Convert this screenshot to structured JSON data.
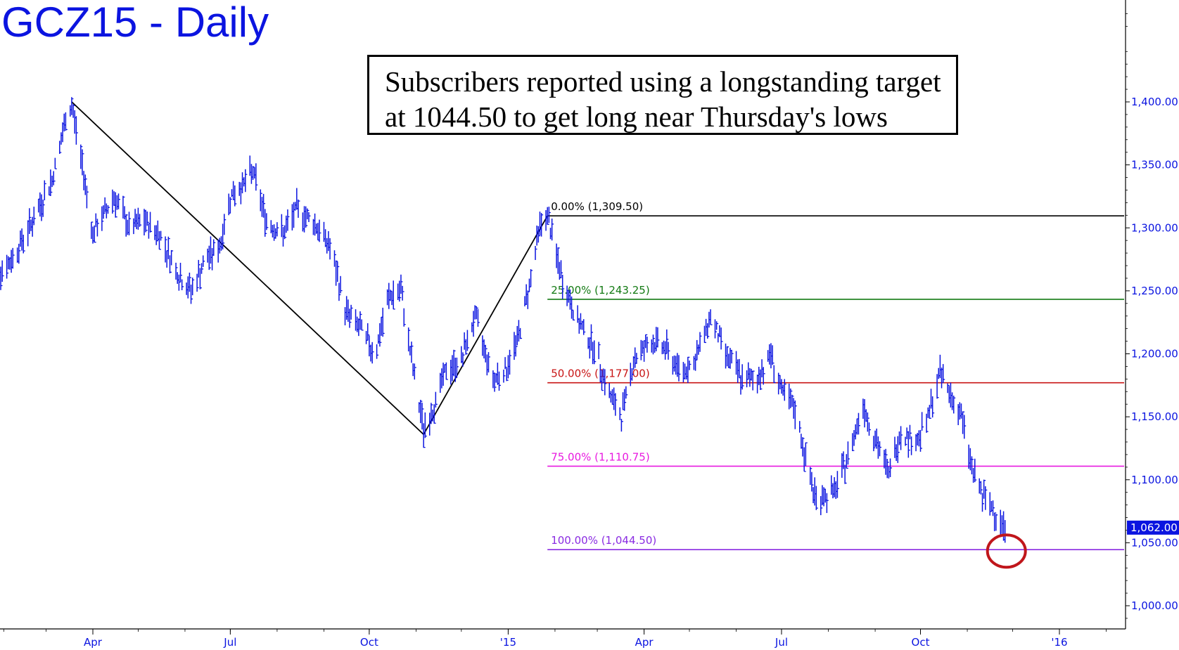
{
  "title": "GCZ15 - Daily",
  "annotation": {
    "line1": "Subscribers reported using a longstanding target",
    "line2": "at 1044.50 to get long near Thursday's lows"
  },
  "chart_data": {
    "type": "line",
    "title": "GCZ15 - Daily",
    "y_axis": {
      "ticks": [
        1000,
        1050,
        1100,
        1150,
        1200,
        1250,
        1300,
        1350,
        1400
      ],
      "tick_labels": [
        "1,000.00",
        "1,050.00",
        "1,100.00",
        "1,150.00",
        "1,200.00",
        "1,250.00",
        "1,300.00",
        "1,350.00",
        "1,400.00"
      ],
      "ylim": [
        982,
        1480
      ]
    },
    "x_axis": {
      "tick_labels": [
        "Apr",
        "Jul",
        "Oct",
        "'15",
        "Apr",
        "Jul",
        "Oct",
        "'16"
      ],
      "tick_dates": [
        "2014-04-01",
        "2014-07-01",
        "2014-10-01",
        "2015-01-01",
        "2015-04-01",
        "2015-07-01",
        "2015-10-01",
        "2016-01-01"
      ],
      "xlim": [
        "2014-01-20",
        "2016-03-01"
      ]
    },
    "grid": false,
    "price_series": {
      "name": "GCZ15",
      "color": "#0b14e0",
      "points": [
        [
          "2014-01-22",
          1258
        ],
        [
          "2014-02-05",
          1272
        ],
        [
          "2014-02-20",
          1305
        ],
        [
          "2014-03-05",
          1338
        ],
        [
          "2014-03-14",
          1385
        ],
        [
          "2014-03-18",
          1398
        ],
        [
          "2014-03-25",
          1350
        ],
        [
          "2014-04-01",
          1295
        ],
        [
          "2014-04-08",
          1310
        ],
        [
          "2014-04-15",
          1325
        ],
        [
          "2014-04-25",
          1300
        ],
        [
          "2014-05-05",
          1305
        ],
        [
          "2014-05-15",
          1295
        ],
        [
          "2014-05-28",
          1262
        ],
        [
          "2014-06-05",
          1250
        ],
        [
          "2014-06-15",
          1275
        ],
        [
          "2014-06-24",
          1285
        ],
        [
          "2014-07-01",
          1325
        ],
        [
          "2014-07-10",
          1335
        ],
        [
          "2014-07-16",
          1345
        ],
        [
          "2014-07-25",
          1305
        ],
        [
          "2014-08-05",
          1295
        ],
        [
          "2014-08-14",
          1315
        ],
        [
          "2014-08-25",
          1305
        ],
        [
          "2014-09-05",
          1285
        ],
        [
          "2014-09-15",
          1235
        ],
        [
          "2014-09-25",
          1220
        ],
        [
          "2014-10-05",
          1200
        ],
        [
          "2014-10-14",
          1245
        ],
        [
          "2014-10-22",
          1250
        ],
        [
          "2014-10-31",
          1180
        ],
        [
          "2014-11-06",
          1140
        ],
        [
          "2014-11-12",
          1155
        ],
        [
          "2014-11-20",
          1185
        ],
        [
          "2014-12-01",
          1195
        ],
        [
          "2014-12-10",
          1230
        ],
        [
          "2014-12-22",
          1180
        ],
        [
          "2014-12-31",
          1188
        ],
        [
          "2015-01-08",
          1215
        ],
        [
          "2015-01-15",
          1255
        ],
        [
          "2015-01-22",
          1302
        ],
        [
          "2015-01-27",
          1309.5
        ],
        [
          "2015-02-05",
          1262
        ],
        [
          "2015-02-15",
          1228
        ],
        [
          "2015-02-27",
          1205
        ],
        [
          "2015-03-10",
          1165
        ],
        [
          "2015-03-17",
          1150
        ],
        [
          "2015-03-25",
          1195
        ],
        [
          "2015-04-05",
          1210
        ],
        [
          "2015-04-15",
          1205
        ],
        [
          "2015-04-25",
          1185
        ],
        [
          "2015-05-05",
          1195
        ],
        [
          "2015-05-15",
          1230
        ],
        [
          "2015-05-25",
          1200
        ],
        [
          "2015-06-05",
          1180
        ],
        [
          "2015-06-15",
          1180
        ],
        [
          "2015-06-24",
          1200
        ],
        [
          "2015-07-01",
          1170
        ],
        [
          "2015-07-10",
          1155
        ],
        [
          "2015-07-20",
          1100
        ],
        [
          "2015-07-24",
          1085
        ],
        [
          "2015-08-05",
          1090
        ],
        [
          "2015-08-14",
          1118
        ],
        [
          "2015-08-24",
          1160
        ],
        [
          "2015-08-31",
          1135
        ],
        [
          "2015-09-10",
          1105
        ],
        [
          "2015-09-18",
          1138
        ],
        [
          "2015-09-28",
          1130
        ],
        [
          "2015-10-05",
          1145
        ],
        [
          "2015-10-14",
          1185
        ],
        [
          "2015-10-22",
          1165
        ],
        [
          "2015-10-28",
          1150
        ],
        [
          "2015-11-05",
          1105
        ],
        [
          "2015-11-12",
          1085
        ],
        [
          "2015-11-19",
          1075
        ],
        [
          "2015-11-26",
          1062
        ]
      ]
    },
    "trend_lines": [
      {
        "from": [
          "2014-03-18",
          1400
        ],
        "to": [
          "2014-11-06",
          1136
        ]
      },
      {
        "from": [
          "2014-11-06",
          1136
        ],
        "to": [
          "2015-01-27",
          1309.5
        ]
      }
    ],
    "fibonacci_levels": [
      {
        "label": "0.00% (1,309.50)",
        "value": 1309.5,
        "color": "#000000"
      },
      {
        "label": "25.00% (1,243.25)",
        "value": 1243.25,
        "color": "#137a13"
      },
      {
        "label": "50.00% (1,177.00)",
        "value": 1177.0,
        "color": "#c81414"
      },
      {
        "label": "75.00% (1,110.75)",
        "value": 1110.75,
        "color": "#e81ae0"
      },
      {
        "label": "100.00% (1,044.50)",
        "value": 1044.5,
        "color": "#8a2be2"
      }
    ],
    "last_price": {
      "label": "1,062.00",
      "value": 1062.0
    },
    "highlight_circle": {
      "date": "2015-11-26",
      "value": 1044.5,
      "color": "#c0161b"
    }
  }
}
